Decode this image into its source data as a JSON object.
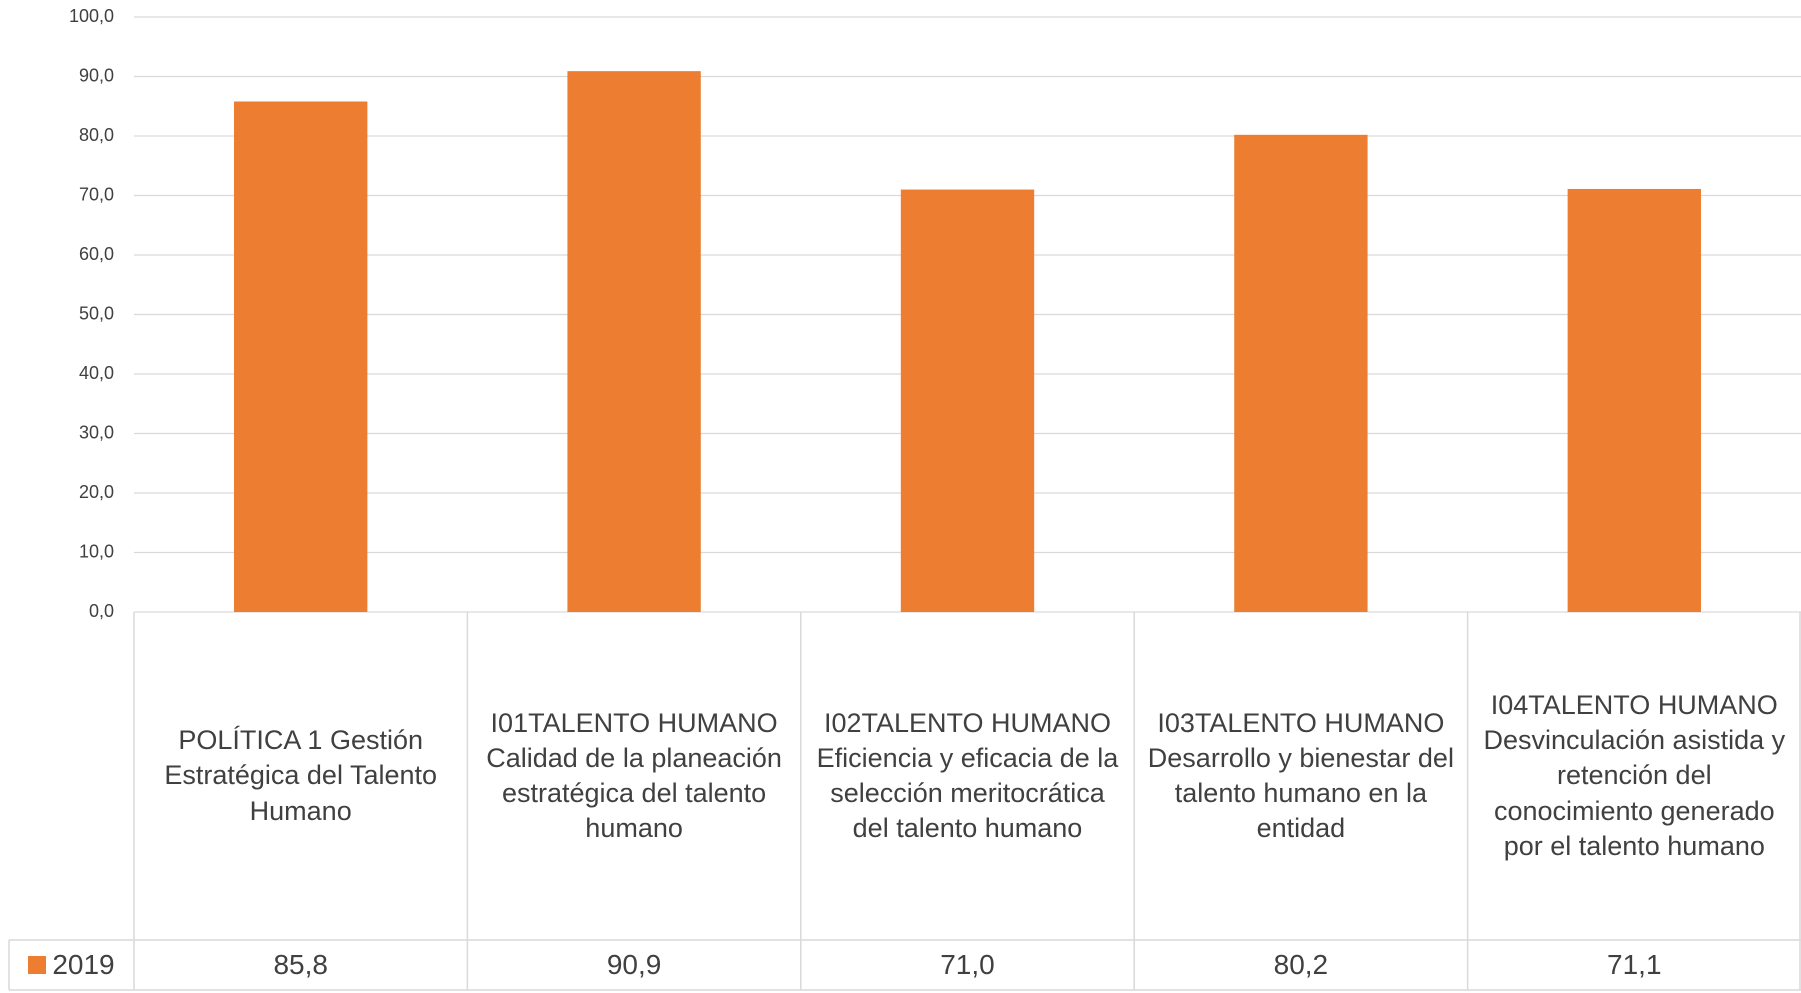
{
  "chart_data": {
    "type": "bar",
    "categories": [
      "POLÍTICA 1 Gestión Estratégica del Talento Humano",
      "I01TALENTO HUMANO Calidad de la planeación estratégica del talento humano",
      "I02TALENTO HUMANO Eficiencia y eficacia de la selección meritocrática del talento humano",
      "I03TALENTO HUMANO Desarrollo y bienestar del talento humano en la entidad",
      "I04TALENTO HUMANO Desvinculación asistida y retención del conocimiento generado por el talento humano"
    ],
    "series": [
      {
        "name": "2019",
        "color": "#ED7D31",
        "values": [
          85.8,
          90.9,
          71.0,
          80.2,
          71.1
        ],
        "value_labels": [
          "85,8",
          "90,9",
          "71,0",
          "80,2",
          "71,1"
        ]
      }
    ],
    "ylim": [
      0,
      100
    ],
    "yticks": [
      {
        "value": 0,
        "label": "0,0"
      },
      {
        "value": 10,
        "label": "10,0"
      },
      {
        "value": 20,
        "label": "20,0"
      },
      {
        "value": 30,
        "label": "30,0"
      },
      {
        "value": 40,
        "label": "40,0"
      },
      {
        "value": 50,
        "label": "50,0"
      },
      {
        "value": 60,
        "label": "60,0"
      },
      {
        "value": 70,
        "label": "70,0"
      },
      {
        "value": 80,
        "label": "80,0"
      },
      {
        "value": 90,
        "label": "90,0"
      },
      {
        "value": 100,
        "label": "100,0"
      }
    ],
    "grid": true,
    "data_table": true
  }
}
